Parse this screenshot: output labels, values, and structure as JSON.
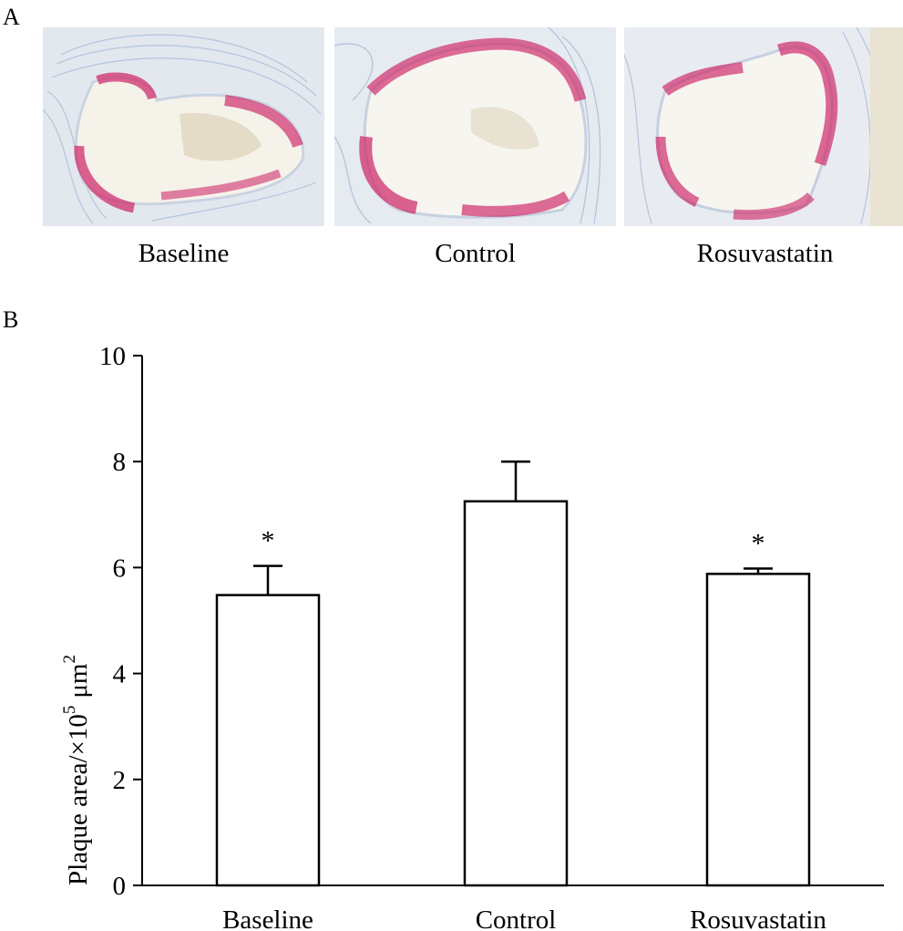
{
  "panel_a": {
    "letter": "A",
    "images": [
      {
        "label": "Baseline"
      },
      {
        "label": "Control"
      },
      {
        "label": "Rosuvastatin"
      }
    ]
  },
  "panel_b": {
    "letter": "B"
  },
  "colors": {
    "stain": "#d0306a",
    "tissue": "#9fb4d4",
    "background": "#e9eef2"
  },
  "chart_data": {
    "type": "bar",
    "categories": [
      "Baseline",
      "Control",
      "Rosuvastatin"
    ],
    "values": [
      5.48,
      7.25,
      5.88
    ],
    "errors": [
      0.55,
      0.75,
      0.1
    ],
    "significance": [
      "*",
      "",
      "*"
    ],
    "ylabel": "Plaque area/×10",
    "ylabel_exponent": "5",
    "ylabel_unit": "μm",
    "ylabel_unit_exponent": "2",
    "ylim": [
      0,
      10
    ],
    "yticks": [
      0,
      2,
      4,
      6,
      8,
      10
    ],
    "grid": false
  }
}
